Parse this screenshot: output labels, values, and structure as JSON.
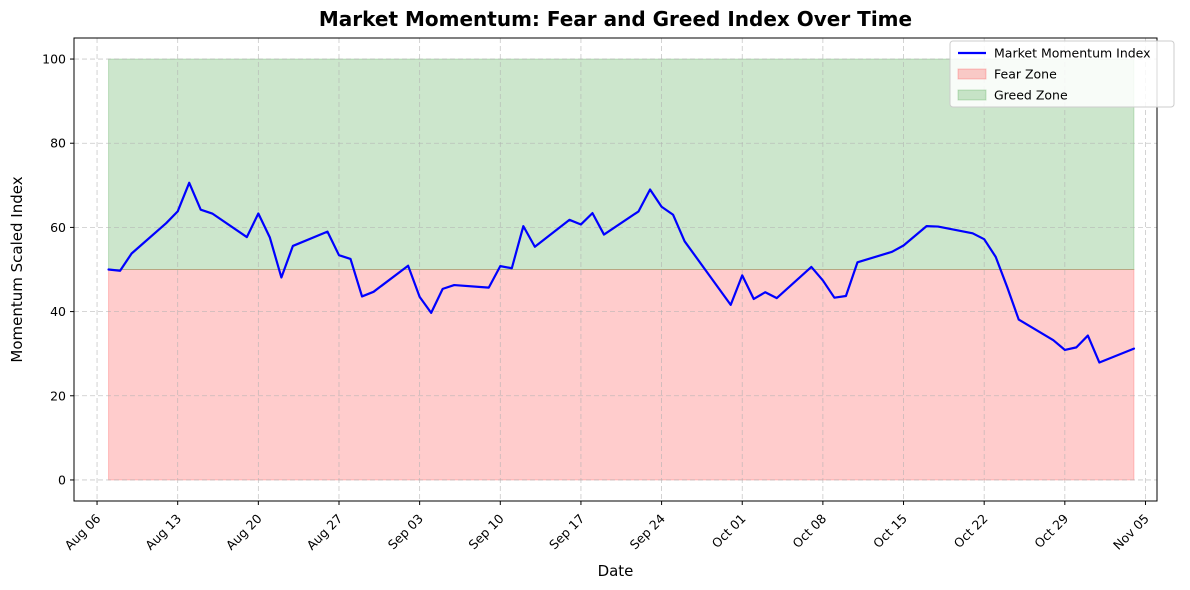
{
  "chart_data": {
    "type": "line",
    "title": "Market Momentum: Fear and Greed Index Over Time",
    "xlabel": "Date",
    "ylabel": "Momentum Scaled Index",
    "xlim": [
      "2023-08-04",
      "2023-11-06"
    ],
    "ylim": [
      -5,
      105
    ],
    "grid": true,
    "legend_position": "top-right",
    "x_ticks": [
      {
        "date": "2023-08-06",
        "label": "Aug 06"
      },
      {
        "date": "2023-08-13",
        "label": "Aug 13"
      },
      {
        "date": "2023-08-20",
        "label": "Aug 20"
      },
      {
        "date": "2023-08-27",
        "label": "Aug 27"
      },
      {
        "date": "2023-09-03",
        "label": "Sep 03"
      },
      {
        "date": "2023-09-10",
        "label": "Sep 10"
      },
      {
        "date": "2023-09-17",
        "label": "Sep 17"
      },
      {
        "date": "2023-09-24",
        "label": "Sep 24"
      },
      {
        "date": "2023-10-01",
        "label": "Oct 01"
      },
      {
        "date": "2023-10-08",
        "label": "Oct 08"
      },
      {
        "date": "2023-10-15",
        "label": "Oct 15"
      },
      {
        "date": "2023-10-22",
        "label": "Oct 22"
      },
      {
        "date": "2023-10-29",
        "label": "Oct 29"
      },
      {
        "date": "2023-11-05",
        "label": "Nov 05"
      }
    ],
    "y_ticks": [
      0,
      20,
      40,
      60,
      80,
      100
    ],
    "series": [
      {
        "name": "Market Momentum Index",
        "color": "#0000ff",
        "points": [
          [
            "2023-08-07",
            50.0
          ],
          [
            "2023-08-08",
            49.7
          ],
          [
            "2023-08-09",
            53.8
          ],
          [
            "2023-08-12",
            61.0
          ],
          [
            "2023-08-13",
            63.8
          ],
          [
            "2023-08-14",
            70.6
          ],
          [
            "2023-08-15",
            64.2
          ],
          [
            "2023-08-16",
            63.3
          ],
          [
            "2023-08-19",
            57.7
          ],
          [
            "2023-08-20",
            63.3
          ],
          [
            "2023-08-21",
            57.6
          ],
          [
            "2023-08-22",
            48.1
          ],
          [
            "2023-08-23",
            55.6
          ],
          [
            "2023-08-26",
            59.0
          ],
          [
            "2023-08-27",
            53.4
          ],
          [
            "2023-08-28",
            52.5
          ],
          [
            "2023-08-29",
            43.6
          ],
          [
            "2023-08-30",
            44.7
          ],
          [
            "2023-09-02",
            50.9
          ],
          [
            "2023-09-03",
            43.5
          ],
          [
            "2023-09-04",
            39.7
          ],
          [
            "2023-09-05",
            45.4
          ],
          [
            "2023-09-06",
            46.3
          ],
          [
            "2023-09-09",
            45.7
          ],
          [
            "2023-09-10",
            50.8
          ],
          [
            "2023-09-11",
            50.3
          ],
          [
            "2023-09-12",
            60.3
          ],
          [
            "2023-09-13",
            55.4
          ],
          [
            "2023-09-16",
            61.8
          ],
          [
            "2023-09-17",
            60.7
          ],
          [
            "2023-09-18",
            63.4
          ],
          [
            "2023-09-19",
            58.3
          ],
          [
            "2023-09-22",
            63.8
          ],
          [
            "2023-09-23",
            69.0
          ],
          [
            "2023-09-24",
            64.9
          ],
          [
            "2023-09-25",
            63.0
          ],
          [
            "2023-09-26",
            56.7
          ],
          [
            "2023-09-30",
            41.6
          ],
          [
            "2023-10-01",
            48.6
          ],
          [
            "2023-10-02",
            43.0
          ],
          [
            "2023-10-03",
            44.6
          ],
          [
            "2023-10-04",
            43.2
          ],
          [
            "2023-10-07",
            50.6
          ],
          [
            "2023-10-08",
            47.4
          ],
          [
            "2023-10-09",
            43.3
          ],
          [
            "2023-10-10",
            43.7
          ],
          [
            "2023-10-11",
            51.7
          ],
          [
            "2023-10-14",
            54.2
          ],
          [
            "2023-10-15",
            55.7
          ],
          [
            "2023-10-17",
            60.3
          ],
          [
            "2023-10-18",
            60.2
          ],
          [
            "2023-10-21",
            58.6
          ],
          [
            "2023-10-22",
            57.2
          ],
          [
            "2023-10-23",
            53.0
          ],
          [
            "2023-10-24",
            45.8
          ],
          [
            "2023-10-25",
            38.1
          ],
          [
            "2023-10-28",
            33.2
          ],
          [
            "2023-10-29",
            30.9
          ],
          [
            "2023-10-30",
            31.5
          ],
          [
            "2023-10-31",
            34.3
          ],
          [
            "2023-11-01",
            27.9
          ],
          [
            "2023-11-04",
            31.2
          ]
        ]
      }
    ],
    "zones": [
      {
        "name": "Fear Zone",
        "from": 0,
        "to": 50,
        "start": "2023-08-07",
        "end": "2023-11-04",
        "color": "#ff0000",
        "alpha": 0.2
      },
      {
        "name": "Greed Zone",
        "from": 50,
        "to": 100,
        "start": "2023-08-07",
        "end": "2023-11-04",
        "color": "#008000",
        "alpha": 0.2
      }
    ]
  }
}
